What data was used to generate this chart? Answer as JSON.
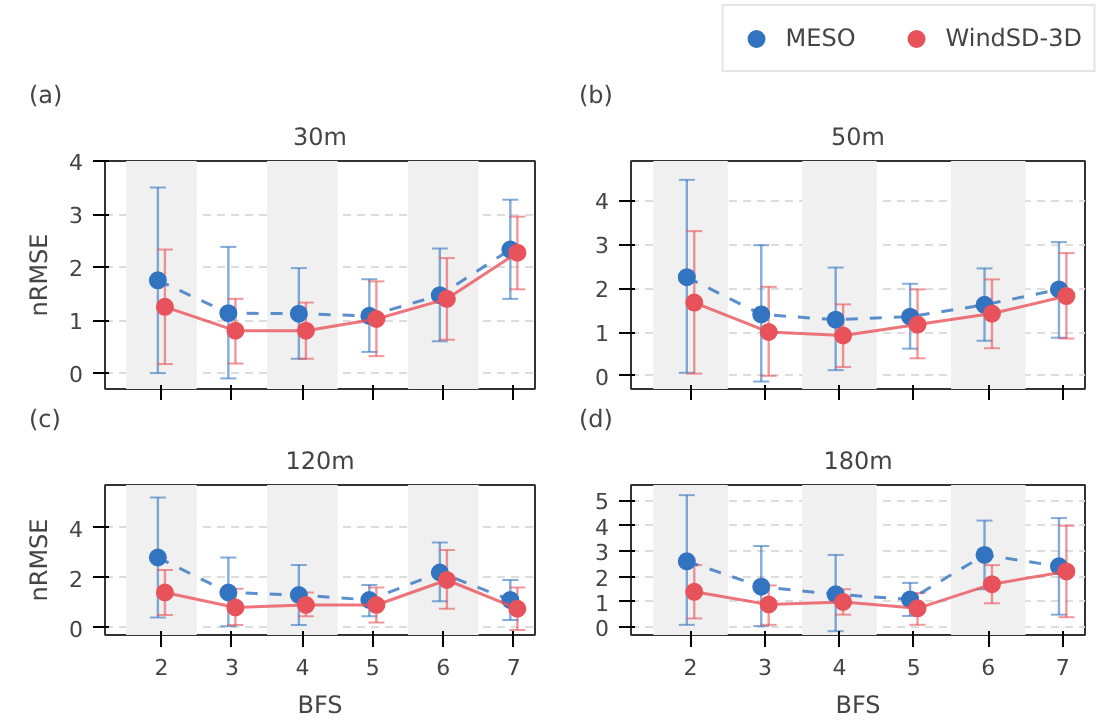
{
  "chart_data": [
    {
      "type": "line",
      "title": "30m",
      "annotations": [
        "(a)"
      ],
      "ylabel": "nRMSE",
      "xlim": [
        1.2,
        7.3
      ],
      "xticks": [
        2,
        3,
        4,
        5,
        6,
        7
      ],
      "ylim": [
        -0.3,
        4
      ],
      "yticks": [
        0,
        1,
        2,
        3,
        4
      ],
      "grid": "y",
      "marker": "circle",
      "tick_labels": "y",
      "legend": "top right",
      "bands": [
        {
          "axis": "x",
          "from": 1.5,
          "to": 2.5,
          "color": "#f0f0f0"
        },
        {
          "axis": "x",
          "from": 3.5,
          "to": 4.5,
          "color": "#f0f0f0"
        },
        {
          "axis": "x",
          "from": 5.5,
          "to": 6.5,
          "color": "#f0f0f0"
        }
      ],
      "series": [
        {
          "name": "MESO",
          "color": "#3274c0",
          "line_style": "dashed",
          "x": [
            1.95,
            2.95,
            3.95,
            4.95,
            5.95,
            6.95
          ],
          "values": [
            1.75,
            1.13,
            1.12,
            1.08,
            1.47,
            2.33
          ],
          "errors": [
            [
              0,
              3.5
            ],
            [
              -0.1,
              2.38
            ],
            [
              0.27,
              1.98
            ],
            [
              0.4,
              1.77
            ],
            [
              0.6,
              2.35
            ],
            [
              1.4,
              3.27
            ]
          ]
        },
        {
          "name": "WindSD-3D",
          "color": "#e8525a",
          "line_style": "solid",
          "x": [
            2.05,
            3.05,
            4.05,
            5.05,
            6.05,
            7.05
          ],
          "values": [
            1.25,
            0.8,
            0.8,
            1.02,
            1.4,
            2.27
          ],
          "errors": [
            [
              0.17,
              2.33
            ],
            [
              0.18,
              1.4
            ],
            [
              0.27,
              1.33
            ],
            [
              0.32,
              1.73
            ],
            [
              0.63,
              2.17
            ],
            [
              1.58,
              2.95
            ]
          ]
        }
      ]
    },
    {
      "type": "line",
      "title": "50m",
      "annotations": [
        "(b)"
      ],
      "xlim": [
        1.2,
        7.3
      ],
      "xticks": [
        2,
        3,
        4,
        5,
        6,
        7
      ],
      "ylim": [
        -0.3,
        4.9
      ],
      "yticks": [
        0,
        1,
        2,
        3,
        4
      ],
      "grid": "y",
      "marker": "circle",
      "tick_labels": "y",
      "bands": [
        {
          "axis": "x",
          "from": 1.5,
          "to": 2.5,
          "color": "#f0f0f0"
        },
        {
          "axis": "x",
          "from": 3.5,
          "to": 4.5,
          "color": "#f0f0f0"
        },
        {
          "axis": "x",
          "from": 5.5,
          "to": 6.5,
          "color": "#f0f0f0"
        }
      ],
      "series": [
        {
          "color": "#3274c0",
          "line_style": "dashed",
          "x": [
            1.95,
            2.95,
            3.95,
            4.95,
            5.95,
            6.95
          ],
          "values": [
            2.25,
            1.4,
            1.28,
            1.35,
            1.62,
            1.97
          ],
          "errors": [
            [
              0.07,
              4.47
            ],
            [
              -0.13,
              2.98
            ],
            [
              0.13,
              2.47
            ],
            [
              0.62,
              2.1
            ],
            [
              0.8,
              2.45
            ],
            [
              0.87,
              3.05
            ]
          ]
        },
        {
          "color": "#e8525a",
          "line_style": "solid",
          "x": [
            2.05,
            3.05,
            4.05,
            5.05,
            6.05,
            7.05
          ],
          "values": [
            1.67,
            1.0,
            0.92,
            1.17,
            1.42,
            1.82
          ],
          "errors": [
            [
              0.05,
              3.3
            ],
            [
              0,
              2.03
            ],
            [
              0.2,
              1.63
            ],
            [
              0.4,
              1.97
            ],
            [
              0.63,
              2.2
            ],
            [
              0.85,
              2.8
            ]
          ]
        }
      ]
    },
    {
      "type": "line",
      "title": "120m",
      "annotations": [
        "(c)"
      ],
      "xlabel": "BFS",
      "ylabel": "nRMSE",
      "xlim": [
        1.2,
        7.3
      ],
      "xticks": [
        2,
        3,
        4,
        5,
        6,
        7
      ],
      "ylim": [
        -0.3,
        5.7
      ],
      "yticks": [
        0,
        2,
        4
      ],
      "grid": "y",
      "marker": "circle",
      "bands": [
        {
          "axis": "x",
          "from": 1.5,
          "to": 2.5,
          "color": "#f0f0f0"
        },
        {
          "axis": "x",
          "from": 3.5,
          "to": 4.5,
          "color": "#f0f0f0"
        },
        {
          "axis": "x",
          "from": 5.5,
          "to": 6.5,
          "color": "#f0f0f0"
        }
      ],
      "series": [
        {
          "color": "#3274c0",
          "line_style": "dashed",
          "x": [
            1.95,
            2.95,
            3.95,
            4.95,
            5.95,
            6.95
          ],
          "values": [
            2.8,
            1.4,
            1.3,
            1.1,
            2.2,
            1.1
          ],
          "errors": [
            [
              0.4,
              5.2
            ],
            [
              0.05,
              2.8
            ],
            [
              0.1,
              2.5
            ],
            [
              0.45,
              1.7
            ],
            [
              1.05,
              3.4
            ],
            [
              0.3,
              1.9
            ]
          ]
        },
        {
          "color": "#e8525a",
          "line_style": "solid",
          "x": [
            2.05,
            3.05,
            4.05,
            5.05,
            6.05,
            7.05
          ],
          "values": [
            1.4,
            0.8,
            0.9,
            0.9,
            1.9,
            0.75
          ],
          "errors": [
            [
              0.5,
              2.3
            ],
            [
              0.1,
              1.55
            ],
            [
              0.45,
              1.4
            ],
            [
              0.2,
              1.6
            ],
            [
              0.75,
              3.1
            ],
            [
              -0.1,
              1.6
            ]
          ]
        }
      ]
    },
    {
      "type": "line",
      "title": "180m",
      "annotations": [
        "(d)"
      ],
      "xlabel": "BFS",
      "xlim": [
        1.2,
        7.3
      ],
      "xticks": [
        2,
        3,
        4,
        5,
        6,
        7
      ],
      "ylim": [
        -0.3,
        5.6
      ],
      "yticks": [
        0,
        1,
        2,
        3,
        4,
        5
      ],
      "grid": "y",
      "marker": "circle",
      "bands": [
        {
          "axis": "x",
          "from": 1.5,
          "to": 2.5,
          "color": "#f0f0f0"
        },
        {
          "axis": "x",
          "from": 3.5,
          "to": 4.5,
          "color": "#f0f0f0"
        },
        {
          "axis": "x",
          "from": 5.5,
          "to": 6.5,
          "color": "#f0f0f0"
        }
      ],
      "series": [
        {
          "color": "#3274c0",
          "line_style": "dashed",
          "x": [
            1.95,
            2.95,
            3.95,
            4.95,
            5.95,
            6.95
          ],
          "values": [
            2.6,
            1.6,
            1.3,
            1.1,
            2.85,
            2.4
          ],
          "errors": [
            [
              0.1,
              5.2
            ],
            [
              0.05,
              3.2
            ],
            [
              -0.15,
              2.85
            ],
            [
              0.45,
              1.75
            ],
            [
              1.5,
              4.2
            ],
            [
              0.5,
              4.3
            ]
          ]
        },
        {
          "color": "#e8525a",
          "line_style": "solid",
          "x": [
            2.05,
            3.05,
            4.05,
            5.05,
            6.05,
            7.05
          ],
          "values": [
            1.4,
            0.9,
            1.0,
            0.75,
            1.7,
            2.2
          ],
          "errors": [
            [
              0.35,
              2.45
            ],
            [
              0.1,
              1.65
            ],
            [
              0.5,
              1.5
            ],
            [
              0.1,
              1.35
            ],
            [
              0.95,
              2.45
            ],
            [
              0.4,
              4.0
            ]
          ]
        }
      ]
    }
  ]
}
